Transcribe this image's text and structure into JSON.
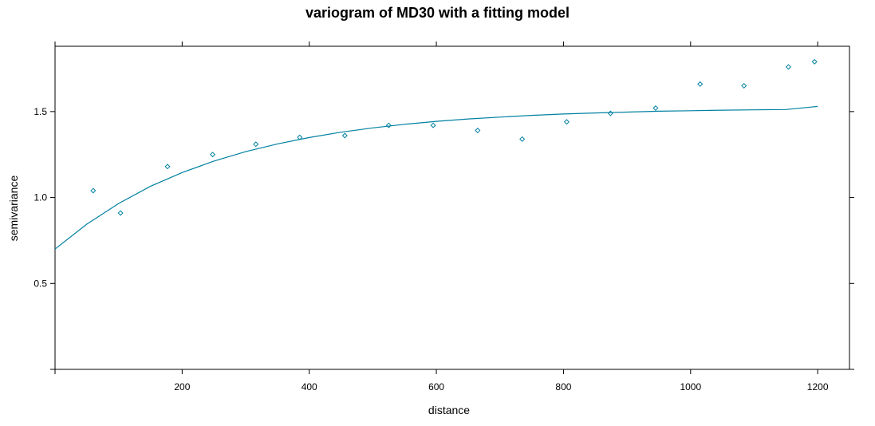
{
  "chart_data": {
    "type": "scatter",
    "title": "variogram of MD30 with a fitting model",
    "xlabel": "distance",
    "ylabel": "semivariance",
    "xlim": [
      0,
      1250
    ],
    "ylim": [
      0,
      1.88
    ],
    "x_ticks": [
      200,
      400,
      600,
      800,
      1000,
      1200
    ],
    "y_ticks": [
      0.5,
      1.0,
      1.5
    ],
    "x_tick_labels": [
      "200",
      "400",
      "600",
      "800",
      "1000",
      "1200"
    ],
    "y_tick_labels": [
      "0.5",
      "1.0",
      "1.5"
    ],
    "grid": false,
    "point_color": "#0080a0",
    "line_color": "#0080a0",
    "series": [
      {
        "kind": "points",
        "x": [
          60,
          103,
          177,
          248,
          316,
          385,
          456,
          525,
          595,
          665,
          735,
          805,
          874,
          945,
          1015,
          1084,
          1154,
          1195
        ],
        "y": [
          1.04,
          0.91,
          1.18,
          1.25,
          1.31,
          1.35,
          1.36,
          1.42,
          1.42,
          1.39,
          1.34,
          1.44,
          1.49,
          1.52,
          1.66,
          1.65,
          1.76,
          1.79
        ]
      },
      {
        "kind": "line",
        "x": [
          0,
          50,
          100,
          150,
          200,
          250,
          300,
          350,
          400,
          450,
          500,
          550,
          600,
          650,
          700,
          750,
          800,
          850,
          900,
          950,
          1000,
          1050,
          1100,
          1150,
          1200
        ],
        "y": [
          0.7,
          0.845,
          0.965,
          1.065,
          1.145,
          1.212,
          1.267,
          1.312,
          1.349,
          1.38,
          1.405,
          1.426,
          1.443,
          1.457,
          1.468,
          1.478,
          1.486,
          1.492,
          1.497,
          1.502,
          1.505,
          1.508,
          1.51,
          1.512,
          1.53
        ]
      }
    ]
  }
}
